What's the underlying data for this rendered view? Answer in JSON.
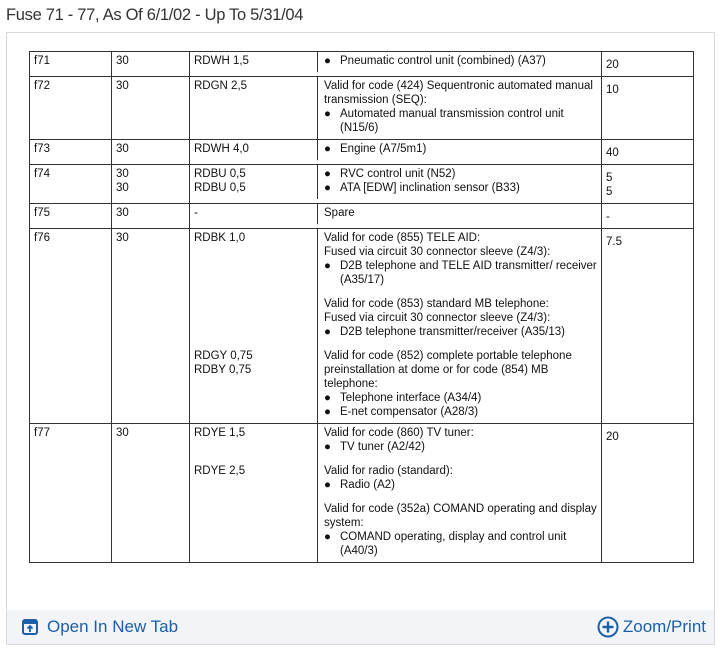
{
  "title": "Fuse 71 - 77, As Of 6/1/02 - Up To 5/31/04",
  "rows": [
    {
      "fuse": "f71",
      "terminal": [
        "30"
      ],
      "amps": [
        "20"
      ],
      "groups": [
        {
          "wire": [
            "RDWH 1,5"
          ],
          "desc": [
            {
              "bullet": "Pneumatic control unit (combined) (A37)"
            }
          ]
        }
      ]
    },
    {
      "fuse": "f72",
      "terminal": [
        "30"
      ],
      "amps": [
        "10"
      ],
      "groups": [
        {
          "wire": [
            "RDGN 2,5"
          ],
          "desc": [
            {
              "text": "Valid for code (424) Sequentronic automated manual transmission (SEQ):"
            },
            {
              "bullet": "Automated manual transmission control unit (N15/6)"
            }
          ]
        }
      ]
    },
    {
      "fuse": "f73",
      "terminal": [
        "30"
      ],
      "amps": [
        "40"
      ],
      "groups": [
        {
          "wire": [
            "RDWH 4,0"
          ],
          "desc": [
            {
              "bullet": "Engine (A7/5m1)"
            }
          ]
        }
      ]
    },
    {
      "fuse": "f74",
      "terminal": [
        "30",
        "30"
      ],
      "amps": [
        "5",
        "5"
      ],
      "groups": [
        {
          "wire": [
            "RDBU 0,5",
            "RDBU 0,5"
          ],
          "desc": [
            {
              "bullet": "RVC control unit (N52)"
            },
            {
              "bullet": "ATA [EDW] inclination sensor (B33)"
            }
          ]
        }
      ]
    },
    {
      "fuse": "f75",
      "terminal": [
        "30"
      ],
      "amps": [
        "-"
      ],
      "groups": [
        {
          "wire": [
            "-"
          ],
          "desc": [
            {
              "text": "Spare"
            }
          ]
        }
      ]
    },
    {
      "fuse": "f76",
      "terminal": [
        "30"
      ],
      "amps": [
        "7.5"
      ],
      "groups": [
        {
          "wire": [
            "RDBK 1,0"
          ],
          "desc": [
            {
              "text": "Valid for code (855) TELE AID:"
            },
            {
              "text": "Fused via circuit 30 connector sleeve (Z4/3):"
            },
            {
              "bullet": "D2B telephone and TELE AID transmitter/ receiver (A35/17)"
            }
          ]
        },
        {
          "wire": [],
          "desc": [
            {
              "text": "Valid for code (853) standard MB telephone:"
            },
            {
              "text": "Fused via circuit 30 connector sleeve (Z4/3):"
            },
            {
              "bullet": "D2B telephone transmitter/receiver (A35/13)"
            }
          ]
        },
        {
          "wire": [
            "RDGY 0,75",
            "RDBY 0,75"
          ],
          "desc": [
            {
              "text": "Valid for code (852) complete portable telephone preinstallation at dome or for code (854) MB telephone:"
            },
            {
              "bullet": "Telephone interface (A34/4)"
            },
            {
              "bullet": "E-net compensator (A28/3)"
            }
          ]
        }
      ]
    },
    {
      "fuse": "f77",
      "terminal": [
        "30"
      ],
      "amps": [
        "20"
      ],
      "groups": [
        {
          "wire": [
            "RDYE 1,5"
          ],
          "desc": [
            {
              "text": "Valid for code (860) TV tuner:"
            },
            {
              "bullet": "TV tuner (A2/42)"
            }
          ]
        },
        {
          "wire": [
            "RDYE 2,5"
          ],
          "desc": [
            {
              "text": "Valid for radio (standard):"
            },
            {
              "bullet": "Radio (A2)"
            }
          ]
        },
        {
          "wire": [],
          "desc": [
            {
              "text": "Valid for code (352a) COMAND operating and display system:"
            },
            {
              "bullet": "COMAND operating, display and control unit (A40/3)"
            }
          ]
        }
      ]
    }
  ],
  "footer": {
    "open_label": "Open In New Tab",
    "zoom_label": "Zoom/Print",
    "open_icon": "open-new-tab-icon",
    "zoom_icon": "zoom-plus-icon"
  },
  "colors": {
    "link": "#1a5fa8",
    "footer_bg": "#f3f4f7"
  }
}
